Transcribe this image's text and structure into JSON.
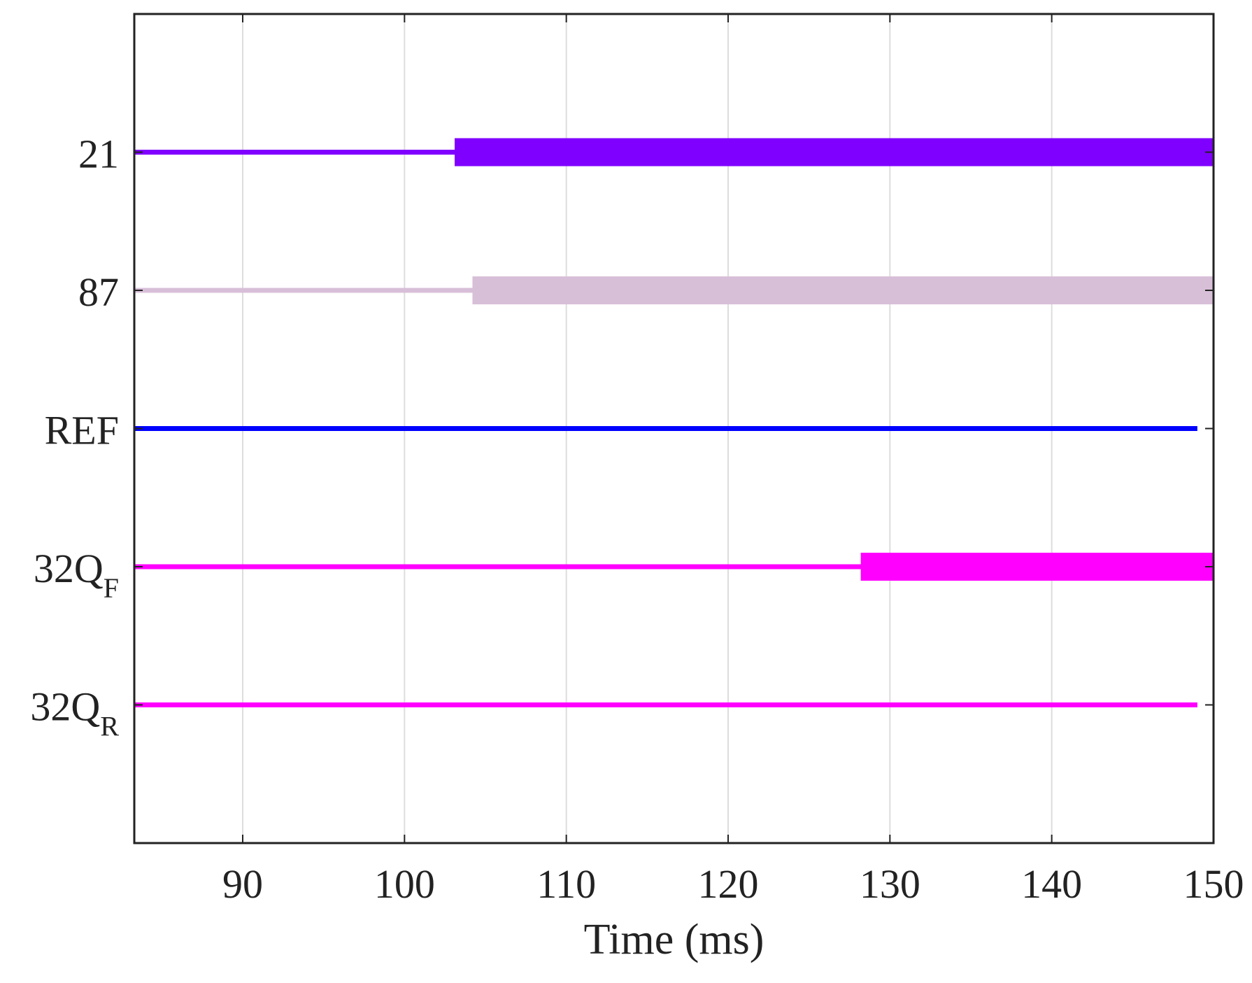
{
  "chart_data": {
    "type": "timeline",
    "title": "",
    "xlabel": "Time (ms)",
    "ylabel": "",
    "xlim": [
      83.3,
      150
    ],
    "xticks": [
      90,
      100,
      110,
      120,
      130,
      140,
      150
    ],
    "grid_x": true,
    "grid_y": false,
    "series": [
      {
        "name": "21",
        "label_main": "21",
        "label_sub": "",
        "color": "#8000ff",
        "start": 83.3,
        "end": 150,
        "active_start": 103.1,
        "active_end": 150
      },
      {
        "name": "87",
        "label_main": "87",
        "label_sub": "",
        "color": "#d8bfd8",
        "start": 83.3,
        "end": 150,
        "active_start": 104.2,
        "active_end": 150
      },
      {
        "name": "REF",
        "label_main": "REF",
        "label_sub": "",
        "color": "#0000ff",
        "start": 83.3,
        "end": 149,
        "active_start": null,
        "active_end": null
      },
      {
        "name": "32QF",
        "label_main": "32Q",
        "label_sub": "F",
        "color": "#ff00ff",
        "start": 83.3,
        "end": 150,
        "active_start": 128.2,
        "active_end": 150
      },
      {
        "name": "32QR",
        "label_main": "32Q",
        "label_sub": "R",
        "color": "#ff00ff",
        "start": 83.3,
        "end": 149,
        "active_start": null,
        "active_end": null
      }
    ]
  }
}
